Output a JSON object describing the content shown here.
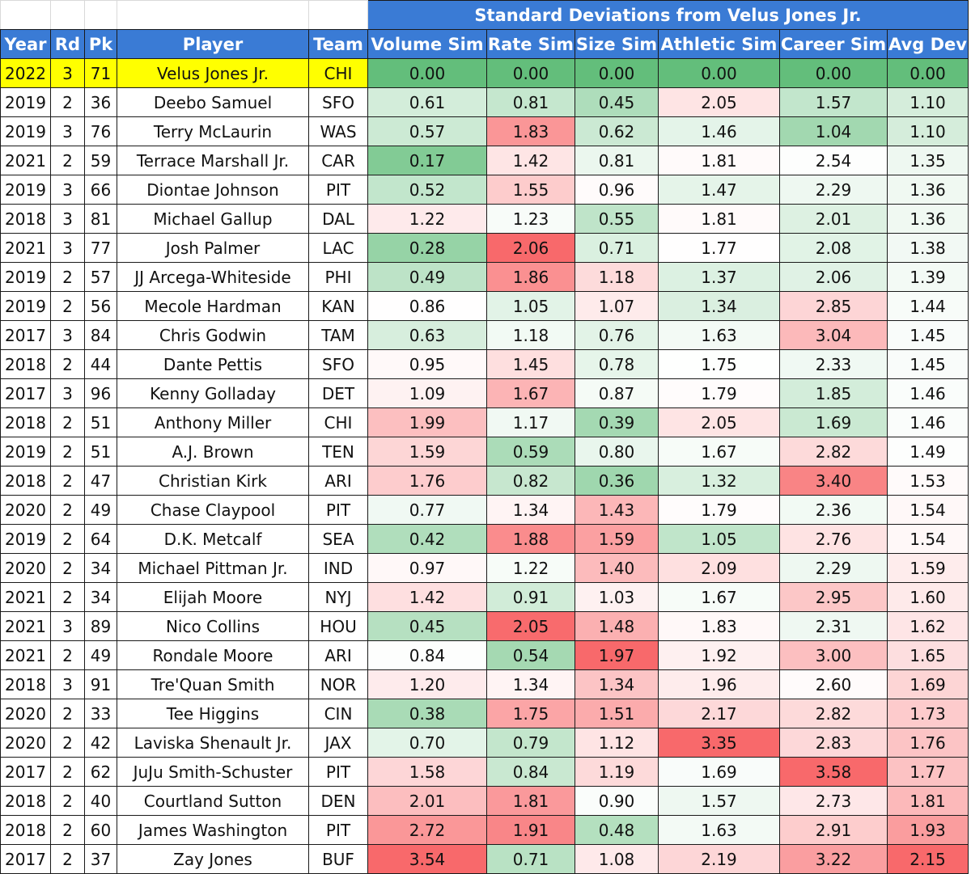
{
  "title": "Standard Deviations from Velus Jones Jr.",
  "headers": [
    "Year",
    "Rd",
    "Pk",
    "Player",
    "Team",
    "Volume Sim",
    "Rate Sim",
    "Size Sim",
    "Athletic Sim",
    "Career Sim",
    "Avg Dev"
  ],
  "colors": {
    "header_bg": "#3a7bd5",
    "highlight_row": "#ffff00",
    "green_max": "#63be7b",
    "red_max": "#f8696b",
    "neutral": "#ffffff"
  },
  "rows": [
    {
      "year": "2022",
      "rd": "3",
      "pk": "71",
      "player": "Velus Jones Jr.",
      "team": "CHI",
      "vol": "0.00",
      "rate": "0.00",
      "size": "0.00",
      "ath": "0.00",
      "car": "0.00",
      "avg": "0.00"
    },
    {
      "year": "2019",
      "rd": "2",
      "pk": "36",
      "player": "Deebo Samuel",
      "team": "SFO",
      "vol": "0.61",
      "rate": "0.81",
      "size": "0.45",
      "ath": "2.05",
      "car": "1.57",
      "avg": "1.10"
    },
    {
      "year": "2019",
      "rd": "3",
      "pk": "76",
      "player": "Terry McLaurin",
      "team": "WAS",
      "vol": "0.57",
      "rate": "1.83",
      "size": "0.62",
      "ath": "1.46",
      "car": "1.04",
      "avg": "1.10"
    },
    {
      "year": "2021",
      "rd": "2",
      "pk": "59",
      "player": "Terrace Marshall Jr.",
      "team": "CAR",
      "vol": "0.17",
      "rate": "1.42",
      "size": "0.81",
      "ath": "1.81",
      "car": "2.54",
      "avg": "1.35"
    },
    {
      "year": "2019",
      "rd": "3",
      "pk": "66",
      "player": "Diontae Johnson",
      "team": "PIT",
      "vol": "0.52",
      "rate": "1.55",
      "size": "0.96",
      "ath": "1.47",
      "car": "2.29",
      "avg": "1.36"
    },
    {
      "year": "2018",
      "rd": "3",
      "pk": "81",
      "player": "Michael Gallup",
      "team": "DAL",
      "vol": "1.22",
      "rate": "1.23",
      "size": "0.55",
      "ath": "1.81",
      "car": "2.01",
      "avg": "1.36"
    },
    {
      "year": "2021",
      "rd": "3",
      "pk": "77",
      "player": "Josh Palmer",
      "team": "LAC",
      "vol": "0.28",
      "rate": "2.06",
      "size": "0.71",
      "ath": "1.77",
      "car": "2.08",
      "avg": "1.38"
    },
    {
      "year": "2019",
      "rd": "2",
      "pk": "57",
      "player": "JJ Arcega-Whiteside",
      "team": "PHI",
      "vol": "0.49",
      "rate": "1.86",
      "size": "1.18",
      "ath": "1.37",
      "car": "2.06",
      "avg": "1.39"
    },
    {
      "year": "2019",
      "rd": "2",
      "pk": "56",
      "player": "Mecole Hardman",
      "team": "KAN",
      "vol": "0.86",
      "rate": "1.05",
      "size": "1.07",
      "ath": "1.34",
      "car": "2.85",
      "avg": "1.44"
    },
    {
      "year": "2017",
      "rd": "3",
      "pk": "84",
      "player": "Chris Godwin",
      "team": "TAM",
      "vol": "0.63",
      "rate": "1.18",
      "size": "0.76",
      "ath": "1.63",
      "car": "3.04",
      "avg": "1.45"
    },
    {
      "year": "2018",
      "rd": "2",
      "pk": "44",
      "player": "Dante Pettis",
      "team": "SFO",
      "vol": "0.95",
      "rate": "1.45",
      "size": "0.78",
      "ath": "1.75",
      "car": "2.33",
      "avg": "1.45"
    },
    {
      "year": "2017",
      "rd": "3",
      "pk": "96",
      "player": "Kenny Golladay",
      "team": "DET",
      "vol": "1.09",
      "rate": "1.67",
      "size": "0.87",
      "ath": "1.79",
      "car": "1.85",
      "avg": "1.46"
    },
    {
      "year": "2018",
      "rd": "2",
      "pk": "51",
      "player": "Anthony Miller",
      "team": "CHI",
      "vol": "1.99",
      "rate": "1.17",
      "size": "0.39",
      "ath": "2.05",
      "car": "1.69",
      "avg": "1.46"
    },
    {
      "year": "2019",
      "rd": "2",
      "pk": "51",
      "player": "A.J. Brown",
      "team": "TEN",
      "vol": "1.59",
      "rate": "0.59",
      "size": "0.80",
      "ath": "1.67",
      "car": "2.82",
      "avg": "1.49"
    },
    {
      "year": "2018",
      "rd": "2",
      "pk": "47",
      "player": "Christian Kirk",
      "team": "ARI",
      "vol": "1.76",
      "rate": "0.82",
      "size": "0.36",
      "ath": "1.32",
      "car": "3.40",
      "avg": "1.53"
    },
    {
      "year": "2020",
      "rd": "2",
      "pk": "49",
      "player": "Chase Claypool",
      "team": "PIT",
      "vol": "0.77",
      "rate": "1.34",
      "size": "1.43",
      "ath": "1.79",
      "car": "2.36",
      "avg": "1.54"
    },
    {
      "year": "2019",
      "rd": "2",
      "pk": "64",
      "player": "D.K. Metcalf",
      "team": "SEA",
      "vol": "0.42",
      "rate": "1.88",
      "size": "1.59",
      "ath": "1.05",
      "car": "2.76",
      "avg": "1.54"
    },
    {
      "year": "2020",
      "rd": "2",
      "pk": "34",
      "player": "Michael Pittman Jr.",
      "team": "IND",
      "vol": "0.97",
      "rate": "1.22",
      "size": "1.40",
      "ath": "2.09",
      "car": "2.29",
      "avg": "1.59"
    },
    {
      "year": "2021",
      "rd": "2",
      "pk": "34",
      "player": "Elijah Moore",
      "team": "NYJ",
      "vol": "1.42",
      "rate": "0.91",
      "size": "1.03",
      "ath": "1.67",
      "car": "2.95",
      "avg": "1.60"
    },
    {
      "year": "2021",
      "rd": "3",
      "pk": "89",
      "player": "Nico Collins",
      "team": "HOU",
      "vol": "0.45",
      "rate": "2.05",
      "size": "1.48",
      "ath": "1.83",
      "car": "2.31",
      "avg": "1.62"
    },
    {
      "year": "2021",
      "rd": "2",
      "pk": "49",
      "player": "Rondale Moore",
      "team": "ARI",
      "vol": "0.84",
      "rate": "0.54",
      "size": "1.97",
      "ath": "1.92",
      "car": "3.00",
      "avg": "1.65"
    },
    {
      "year": "2018",
      "rd": "3",
      "pk": "91",
      "player": "Tre'Quan Smith",
      "team": "NOR",
      "vol": "1.20",
      "rate": "1.34",
      "size": "1.34",
      "ath": "1.96",
      "car": "2.60",
      "avg": "1.69"
    },
    {
      "year": "2020",
      "rd": "2",
      "pk": "33",
      "player": "Tee Higgins",
      "team": "CIN",
      "vol": "0.38",
      "rate": "1.75",
      "size": "1.51",
      "ath": "2.17",
      "car": "2.82",
      "avg": "1.73"
    },
    {
      "year": "2020",
      "rd": "2",
      "pk": "42",
      "player": "Laviska Shenault Jr.",
      "team": "JAX",
      "vol": "0.70",
      "rate": "0.79",
      "size": "1.12",
      "ath": "3.35",
      "car": "2.83",
      "avg": "1.76"
    },
    {
      "year": "2017",
      "rd": "2",
      "pk": "62",
      "player": "JuJu Smith-Schuster",
      "team": "PIT",
      "vol": "1.58",
      "rate": "0.84",
      "size": "1.19",
      "ath": "1.69",
      "car": "3.58",
      "avg": "1.77"
    },
    {
      "year": "2018",
      "rd": "2",
      "pk": "40",
      "player": "Courtland Sutton",
      "team": "DEN",
      "vol": "2.01",
      "rate": "1.81",
      "size": "0.90",
      "ath": "1.57",
      "car": "2.73",
      "avg": "1.81"
    },
    {
      "year": "2018",
      "rd": "2",
      "pk": "60",
      "player": "James Washington",
      "team": "PIT",
      "vol": "2.72",
      "rate": "1.91",
      "size": "0.48",
      "ath": "1.63",
      "car": "2.91",
      "avg": "1.93"
    },
    {
      "year": "2017",
      "rd": "2",
      "pk": "37",
      "player": "Zay Jones",
      "team": "BUF",
      "vol": "3.54",
      "rate": "0.71",
      "size": "1.08",
      "ath": "2.19",
      "car": "3.22",
      "avg": "2.15"
    }
  ]
}
